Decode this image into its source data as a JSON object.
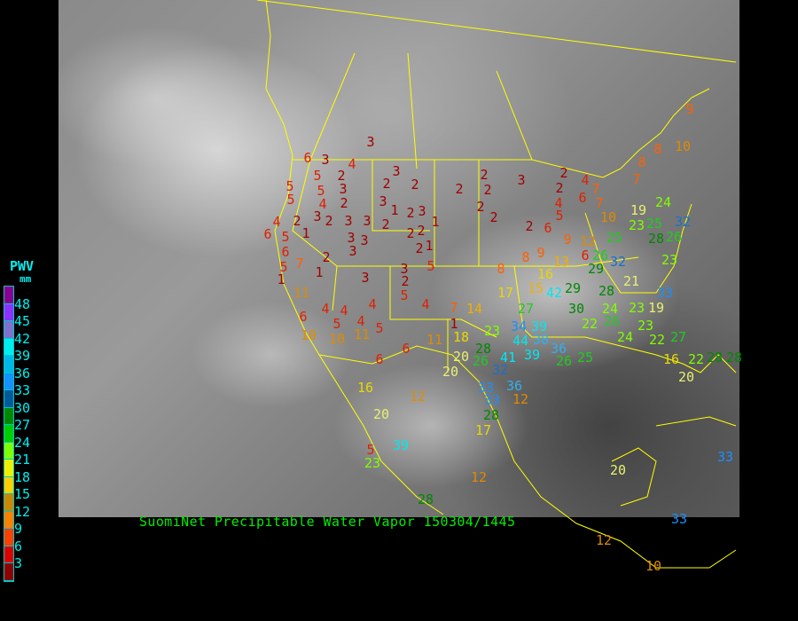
{
  "caption": "SuomiNet Precipitable Water Vapor 150304/1445",
  "legend": {
    "title": "PWV",
    "unit": "mm",
    "labels": [
      "48",
      "45",
      "42",
      "39",
      "36",
      "33",
      "30",
      "27",
      "24",
      "21",
      "18",
      "15",
      "12",
      "9",
      "6",
      "3"
    ],
    "band_colors": [
      "#8a0090",
      "#9030ff",
      "#8070d0",
      "#00eeee",
      "#00b8e8",
      "#1890ff",
      "#005a9a",
      "#008800",
      "#00cc00",
      "#80ff00",
      "#eeee00",
      "#ffd000",
      "#cc8800",
      "#ff8000",
      "#ff4000",
      "#dd0000",
      "#900000"
    ]
  },
  "border_color": "#ffff00",
  "stations": [
    3,
    6,
    3,
    4,
    5,
    5,
    2,
    3,
    3,
    2,
    2,
    2,
    2,
    2,
    3,
    2,
    2,
    4,
    7,
    5,
    5,
    2,
    4,
    3,
    2,
    1,
    1,
    3,
    2,
    2,
    4,
    5,
    6,
    7,
    4,
    2,
    3,
    2,
    3,
    3,
    2,
    2,
    2,
    6,
    5,
    1,
    3,
    3,
    3,
    1,
    2,
    2,
    6,
    6,
    5,
    7,
    2,
    1,
    3,
    5,
    2,
    5,
    3,
    8,
    8,
    9,
    9,
    12,
    10,
    19,
    24,
    32,
    23,
    25,
    25,
    28,
    26,
    26,
    6,
    13,
    16,
    32,
    29,
    1,
    11,
    4,
    4,
    4,
    4,
    6,
    5,
    4,
    5,
    7,
    14,
    17,
    15,
    42,
    29,
    30,
    28,
    21,
    33,
    24,
    23,
    19,
    23,
    10,
    10,
    11,
    18,
    11,
    1,
    27,
    23,
    34,
    39,
    38,
    22,
    26,
    23,
    24,
    22,
    27,
    28,
    20,
    26,
    41,
    39,
    44,
    36,
    26,
    25,
    16,
    22,
    28,
    28,
    20,
    6,
    6,
    20,
    32,
    16,
    33,
    36,
    33,
    12,
    12,
    28,
    20,
    17,
    39,
    5,
    23,
    12,
    20,
    28,
    33,
    33,
    12,
    10,
    9,
    10,
    8,
    8,
    7
  ]
}
